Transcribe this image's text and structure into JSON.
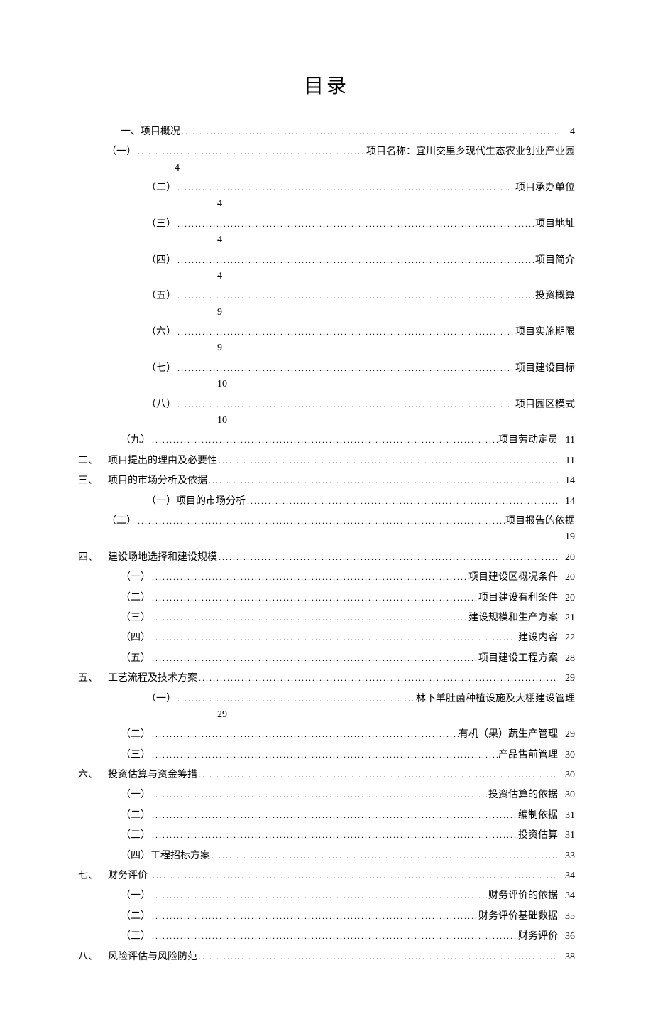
{
  "title": "目录",
  "dots": "....................................................................................................................................................................................................",
  "entries": [
    {
      "indent": "indent-1",
      "prefix": "一、项目概况",
      "suffix": "",
      "page": "4",
      "pageBelow": false
    },
    {
      "indent": "indent-2",
      "prefix": "（一）",
      "suffix": "项目名称：宜川交里乡现代生态农业创业产业园",
      "page": "4",
      "pageBelow": true,
      "belowIndent": "indent-3"
    },
    {
      "indent": "indent-3",
      "prefix": "（二）",
      "suffix": "项目承办单位",
      "page": "4",
      "pageBelow": true,
      "belowIndent": "indent-4"
    },
    {
      "indent": "indent-3",
      "prefix": "（三）",
      "suffix": "项目地址",
      "page": "4",
      "pageBelow": true,
      "belowIndent": "indent-4"
    },
    {
      "indent": "indent-3",
      "prefix": "（四）",
      "suffix": "项目简介",
      "page": "4",
      "pageBelow": true,
      "belowIndent": "indent-4"
    },
    {
      "indent": "indent-3",
      "prefix": "（五）",
      "suffix": "投资概算",
      "page": "9",
      "pageBelow": true,
      "belowIndent": "indent-4"
    },
    {
      "indent": "indent-3",
      "prefix": "（六）",
      "suffix": "项目实施期限",
      "page": "9",
      "pageBelow": true,
      "belowIndent": "indent-4"
    },
    {
      "indent": "indent-3",
      "prefix": "（七）",
      "suffix": "项目建设目标",
      "page": "10",
      "pageBelow": true,
      "belowIndent": "indent-4"
    },
    {
      "indent": "indent-3",
      "prefix": "（八）",
      "suffix": "项目园区模式",
      "page": "10",
      "pageBelow": true,
      "belowIndent": "indent-4"
    },
    {
      "indent": "indent-1",
      "prefix": "（九）",
      "suffix": "项目劳动定员",
      "page": "11",
      "pageBelow": false
    },
    {
      "indent": "indent-0",
      "prefix": "二、",
      "prefixWide": true,
      "prefix2": "项目提出的理由及必要性",
      "suffix": "",
      "page": "11",
      "pageBelow": false
    },
    {
      "indent": "indent-0",
      "prefix": "三、",
      "prefixWide": true,
      "prefix2": "项目的市场分析及依据",
      "suffix": "",
      "page": "14",
      "pageBelow": false
    },
    {
      "indent": "indent-3",
      "prefix": "（一）项目的市场分析",
      "suffix": "",
      "page": "14",
      "pageBelow": false
    },
    {
      "indent": "indent-2",
      "prefix": "（二）",
      "suffix": "项目报告的依据",
      "page": "19",
      "pageBelow": true,
      "belowIndent": "",
      "pageRight": true
    },
    {
      "indent": "indent-0",
      "prefix": "四、",
      "prefixWide": true,
      "prefix2": "建设场地选择和建设规模",
      "suffix": "",
      "page": "20",
      "pageBelow": false
    },
    {
      "indent": "indent-1",
      "prefix": "（一）",
      "suffix": "项目建设区概况条件",
      "page": "20",
      "pageBelow": false
    },
    {
      "indent": "indent-1",
      "prefix": "（二）",
      "suffix": "项目建设有利条件",
      "page": "20",
      "pageBelow": false
    },
    {
      "indent": "indent-1",
      "prefix": "（三）",
      "suffix": "建设规模和生产方案",
      "page": "21",
      "pageBelow": false
    },
    {
      "indent": "indent-1",
      "prefix": "（四）",
      "suffix": "建设内容",
      "page": "22",
      "pageBelow": false
    },
    {
      "indent": "indent-1",
      "prefix": "（五）",
      "suffix": "项目建设工程方案",
      "page": "28",
      "pageBelow": false
    },
    {
      "indent": "indent-0",
      "prefix": "五、",
      "prefixWide": true,
      "prefix2": "工艺流程及技术方案",
      "suffix": "",
      "page": "29",
      "pageBelow": false
    },
    {
      "indent": "indent-3",
      "prefix": "（一）",
      "suffix": "林下羊肚菌种植设施及大棚建设管理",
      "page": "29",
      "pageBelow": true,
      "belowIndent": "indent-4"
    },
    {
      "indent": "indent-1",
      "prefix": "（二）",
      "suffix": "有机（果）蔬生产管理",
      "page": "29",
      "pageBelow": false
    },
    {
      "indent": "indent-1",
      "prefix": "（三）",
      "suffix": "产品售前管理",
      "page": "30",
      "pageBelow": false
    },
    {
      "indent": "indent-0",
      "prefix": "六、",
      "prefixWide": true,
      "prefix2": "投资估算与资金筹措",
      "suffix": "",
      "page": "30",
      "pageBelow": false
    },
    {
      "indent": "indent-1",
      "prefix": "（一）",
      "suffix": "投资估算的依据",
      "page": "30",
      "pageBelow": false
    },
    {
      "indent": "indent-1",
      "prefix": "（二）",
      "suffix": "编制依据",
      "page": "31",
      "pageBelow": false
    },
    {
      "indent": "indent-1",
      "prefix": "（三）",
      "suffix": "投资估算",
      "page": "31",
      "pageBelow": false
    },
    {
      "indent": "indent-1",
      "prefix": "（四）工程招标方案",
      "suffix": "",
      "page": "33",
      "pageBelow": false
    },
    {
      "indent": "indent-0",
      "prefix": "七、",
      "prefixWide": true,
      "prefix2": "财务评价",
      "suffix": "",
      "page": "34",
      "pageBelow": false
    },
    {
      "indent": "indent-1",
      "prefix": "（一）",
      "suffix": "财务评价的依据",
      "page": "34",
      "pageBelow": false
    },
    {
      "indent": "indent-1",
      "prefix": "（二）",
      "suffix": "财务评价基础数据",
      "page": "35",
      "pageBelow": false
    },
    {
      "indent": "indent-1",
      "prefix": "（三）",
      "suffix": "财务评价",
      "page": "36",
      "pageBelow": false
    },
    {
      "indent": "indent-0",
      "prefix": "八、",
      "prefixWide": true,
      "prefix2": "风险评估与风险防范",
      "suffix": "",
      "page": "38",
      "pageBelow": false
    }
  ]
}
